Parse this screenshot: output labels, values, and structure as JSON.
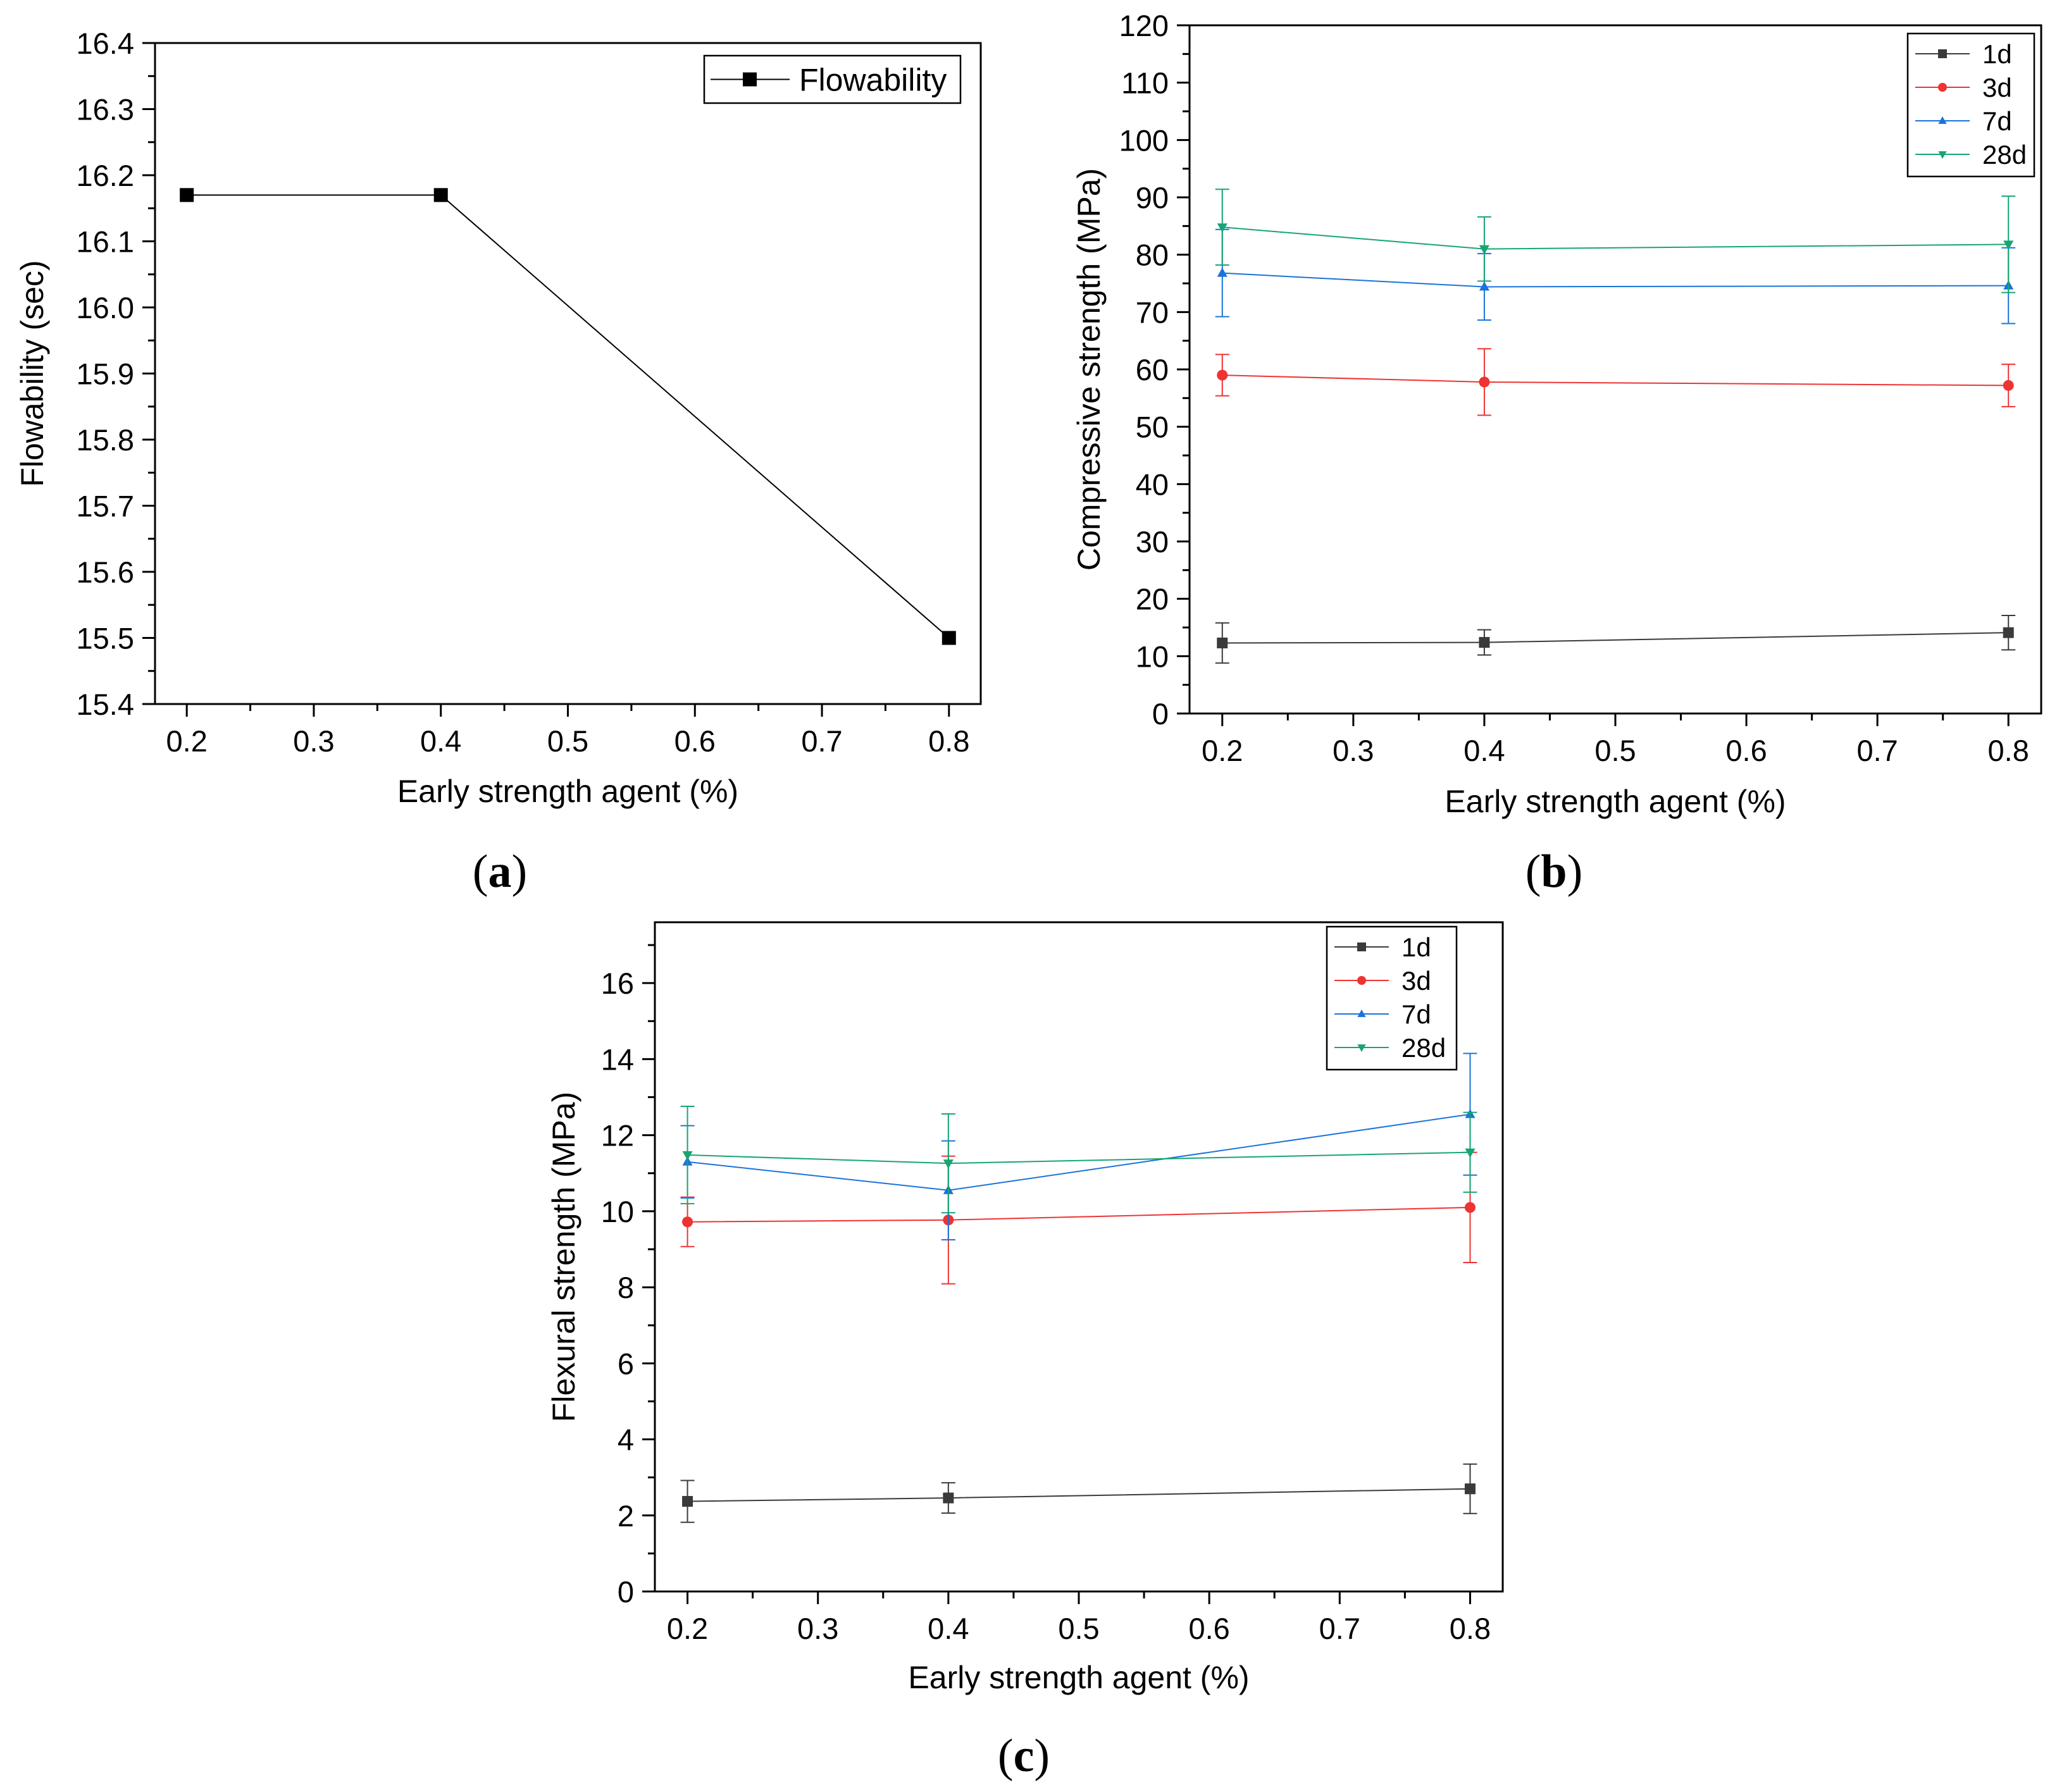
{
  "chart_data": [
    {
      "id": "a",
      "type": "line",
      "panel_label_open": "(",
      "panel_label_letter": "a",
      "panel_label_close": ")",
      "xlabel": "Early strength agent (%)",
      "ylabel": "Flowability (sec)",
      "xlim": [
        0.175,
        0.825
      ],
      "ylim": [
        15.4,
        16.4
      ],
      "xticks": [
        0.2,
        0.3,
        0.4,
        0.5,
        0.6,
        0.7,
        0.8
      ],
      "xtick_labels": [
        "0.2",
        "0.3",
        "0.4",
        "0.5",
        "0.6",
        "0.7",
        "0.8"
      ],
      "yticks": [
        15.4,
        15.5,
        15.6,
        15.7,
        15.8,
        15.9,
        16.0,
        16.1,
        16.2,
        16.3,
        16.4
      ],
      "ytick_labels": [
        "15.4",
        "15.5",
        "15.6",
        "15.7",
        "15.8",
        "15.9",
        "16.0",
        "16.1",
        "16.2",
        "16.3",
        "16.4"
      ],
      "legend_position": "top-right",
      "series": [
        {
          "name": "Flowability",
          "color": "#000000",
          "marker": "square",
          "x": [
            0.2,
            0.4,
            0.8
          ],
          "values": [
            16.17,
            16.17,
            15.5
          ],
          "errors": [
            0,
            0,
            0
          ]
        }
      ]
    },
    {
      "id": "b",
      "type": "line",
      "panel_label_open": "(",
      "panel_label_letter": "b",
      "panel_label_close": ")",
      "xlabel": "Early strength agent (%)",
      "ylabel": "Compressive strength (MPa)",
      "xlim": [
        0.175,
        0.825
      ],
      "ylim": [
        0,
        120
      ],
      "xticks": [
        0.2,
        0.3,
        0.4,
        0.5,
        0.6,
        0.7,
        0.8
      ],
      "xtick_labels": [
        "0.2",
        "0.3",
        "0.4",
        "0.5",
        "0.6",
        "0.7",
        "0.8"
      ],
      "yticks": [
        0,
        10,
        20,
        30,
        40,
        50,
        60,
        70,
        80,
        90,
        100,
        110,
        120
      ],
      "ytick_labels": [
        "0",
        "10",
        "20",
        "30",
        "40",
        "50",
        "60",
        "70",
        "80",
        "90",
        "100",
        "110",
        "120"
      ],
      "legend_position": "top-right",
      "series": [
        {
          "name": "1d",
          "color": "#3a3a3a",
          "marker": "square",
          "x": [
            0.2,
            0.4,
            0.8
          ],
          "values": [
            12.3,
            12.4,
            14.1
          ],
          "errors": [
            3.5,
            2.2,
            3.0
          ]
        },
        {
          "name": "3d",
          "color": "#ee3333",
          "marker": "circle",
          "x": [
            0.2,
            0.4,
            0.8
          ],
          "values": [
            59.0,
            57.8,
            57.2
          ],
          "errors": [
            3.6,
            5.8,
            3.7
          ]
        },
        {
          "name": "7d",
          "color": "#1a73d9",
          "marker": "triangle-up",
          "x": [
            0.2,
            0.4,
            0.8
          ],
          "values": [
            76.8,
            74.4,
            74.6
          ],
          "errors": [
            7.6,
            5.8,
            6.6
          ]
        },
        {
          "name": "28d",
          "color": "#17a572",
          "marker": "triangle-down",
          "x": [
            0.2,
            0.4,
            0.8
          ],
          "values": [
            84.8,
            81.0,
            81.8
          ],
          "errors": [
            6.6,
            5.6,
            8.4
          ]
        }
      ]
    },
    {
      "id": "c",
      "type": "line",
      "panel_label_open": "(",
      "panel_label_letter": "c",
      "panel_label_close": ")",
      "xlabel": "Early strength agent (%)",
      "ylabel": "Flexural strength (MPa)",
      "xlim": [
        0.175,
        0.825
      ],
      "ylim": [
        0,
        17.6
      ],
      "xticks": [
        0.2,
        0.3,
        0.4,
        0.5,
        0.6,
        0.7,
        0.8
      ],
      "xtick_labels": [
        "0.2",
        "0.3",
        "0.4",
        "0.5",
        "0.6",
        "0.7",
        "0.8"
      ],
      "yticks": [
        0,
        2,
        4,
        6,
        8,
        10,
        12,
        14,
        16
      ],
      "ytick_labels": [
        "0",
        "2",
        "4",
        "6",
        "8",
        "10",
        "12",
        "14",
        "16"
      ],
      "legend_position": "top-right",
      "series": [
        {
          "name": "1d",
          "color": "#3a3a3a",
          "marker": "square",
          "x": [
            0.2,
            0.4,
            0.8
          ],
          "values": [
            2.37,
            2.46,
            2.7
          ],
          "errors": [
            0.55,
            0.4,
            0.65
          ]
        },
        {
          "name": "3d",
          "color": "#ee3333",
          "marker": "circle",
          "x": [
            0.2,
            0.4,
            0.8
          ],
          "values": [
            9.72,
            9.77,
            10.1
          ],
          "errors": [
            0.65,
            1.68,
            1.45
          ]
        },
        {
          "name": "7d",
          "color": "#1a73d9",
          "marker": "triangle-up",
          "x": [
            0.2,
            0.4,
            0.8
          ],
          "values": [
            11.3,
            10.55,
            12.55
          ],
          "errors": [
            0.95,
            1.3,
            1.6
          ]
        },
        {
          "name": "28d",
          "color": "#17a572",
          "marker": "triangle-down",
          "x": [
            0.2,
            0.4,
            0.8
          ],
          "values": [
            11.48,
            11.26,
            11.55
          ],
          "errors": [
            1.28,
            1.3,
            1.05
          ]
        }
      ]
    }
  ]
}
